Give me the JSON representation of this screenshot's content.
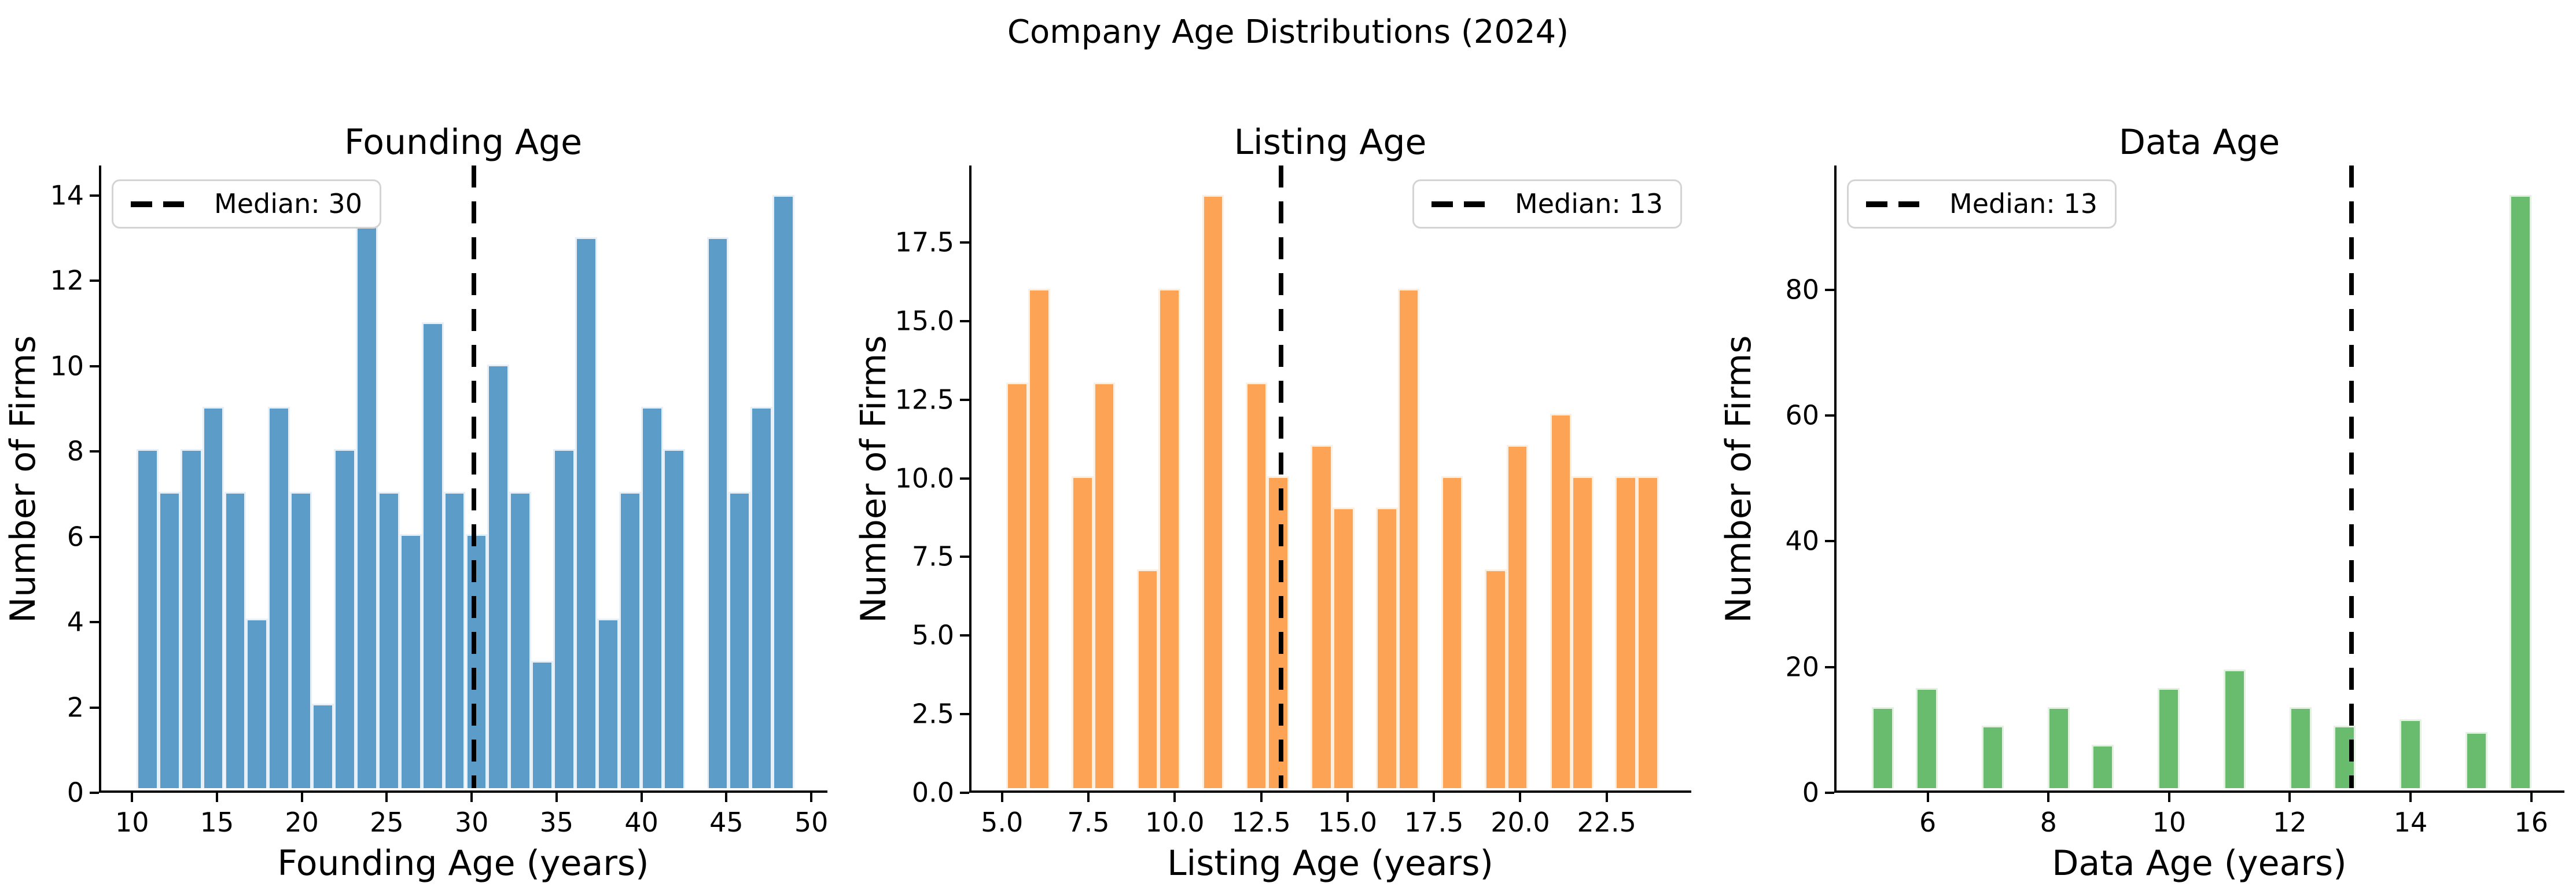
{
  "suptitle": "Company Age Distributions (2024)",
  "chart_data": [
    {
      "type": "bar",
      "title": "Founding Age",
      "xlabel": "Founding Age (years)",
      "ylabel": "Number of Firms",
      "bin_start": 10,
      "bin_width": 1.3,
      "counts": [
        8,
        7,
        8,
        9,
        7,
        4,
        9,
        7,
        2,
        8,
        14,
        7,
        6,
        11,
        7,
        6,
        10,
        7,
        3,
        8,
        13,
        4,
        7,
        9,
        8,
        0,
        13,
        7,
        9,
        14
      ],
      "xlim": [
        8.05,
        50.95
      ],
      "ylim": [
        0,
        14.7
      ],
      "xticks": [
        10,
        15,
        20,
        25,
        30,
        35,
        40,
        45,
        50
      ],
      "xtick_labels": [
        "10",
        "15",
        "20",
        "25",
        "30",
        "35",
        "40",
        "45",
        "50"
      ],
      "yticks": [
        0,
        2,
        4,
        6,
        8,
        10,
        12,
        14
      ],
      "ytick_labels": [
        "0",
        "2",
        "4",
        "6",
        "8",
        "10",
        "12",
        "14"
      ],
      "median": 30,
      "legend_label": "Median: 30",
      "legend_loc": "upper-left",
      "grid": false,
      "bar_color": "#5b9cc9",
      "bar_edge_color": "#e7f0f8"
    },
    {
      "type": "bar",
      "title": "Listing Age",
      "xlabel": "Listing Age (years)",
      "ylabel": "Number of Firms",
      "bin_start": 5,
      "bin_width": 0.6333333,
      "counts": [
        13,
        16,
        0,
        10,
        13,
        0,
        7,
        16,
        0,
        19,
        0,
        13,
        10,
        0,
        11,
        9,
        0,
        9,
        16,
        0,
        10,
        0,
        7,
        11,
        0,
        12,
        10,
        0,
        10,
        10
      ],
      "xlim": [
        4.05,
        24.95
      ],
      "ylim": [
        0,
        19.95
      ],
      "xticks": [
        5,
        7.5,
        10,
        12.5,
        15,
        17.5,
        20,
        22.5
      ],
      "xtick_labels": [
        "5.0",
        "7.5",
        "10.0",
        "12.5",
        "15.0",
        "17.5",
        "20.0",
        "22.5"
      ],
      "yticks": [
        0,
        2.5,
        5,
        7.5,
        10,
        12.5,
        15,
        17.5
      ],
      "ytick_labels": [
        "0.0",
        "2.5",
        "5.0",
        "7.5",
        "10.0",
        "12.5",
        "15.0",
        "17.5"
      ],
      "median": 13,
      "legend_label": "Median: 13",
      "legend_loc": "upper-right",
      "grid": false,
      "bar_color": "#fca355",
      "bar_edge_color": "#fdefdf"
    },
    {
      "type": "bar",
      "title": "Data Age",
      "xlabel": "Data Age (years)",
      "ylabel": "Number of Firms",
      "bin_start": 5,
      "bin_width": 0.3666667,
      "counts": [
        13,
        0,
        16,
        0,
        0,
        10,
        0,
        0,
        13,
        0,
        7,
        0,
        0,
        16,
        0,
        0,
        19,
        0,
        0,
        13,
        0,
        10,
        0,
        0,
        11,
        0,
        0,
        9,
        0,
        95
      ],
      "xlim": [
        4.45,
        16.55
      ],
      "ylim": [
        0,
        99.75
      ],
      "xticks": [
        6,
        8,
        10,
        12,
        14,
        16
      ],
      "xtick_labels": [
        "6",
        "8",
        "10",
        "12",
        "14",
        "16"
      ],
      "yticks": [
        0,
        20,
        40,
        60,
        80
      ],
      "ytick_labels": [
        "0",
        "20",
        "40",
        "60",
        "80"
      ],
      "median": 13,
      "legend_label": "Median: 13",
      "legend_loc": "upper-left",
      "grid": false,
      "bar_color": "#69bc6e",
      "bar_edge_color": "#e2f1e2"
    }
  ]
}
